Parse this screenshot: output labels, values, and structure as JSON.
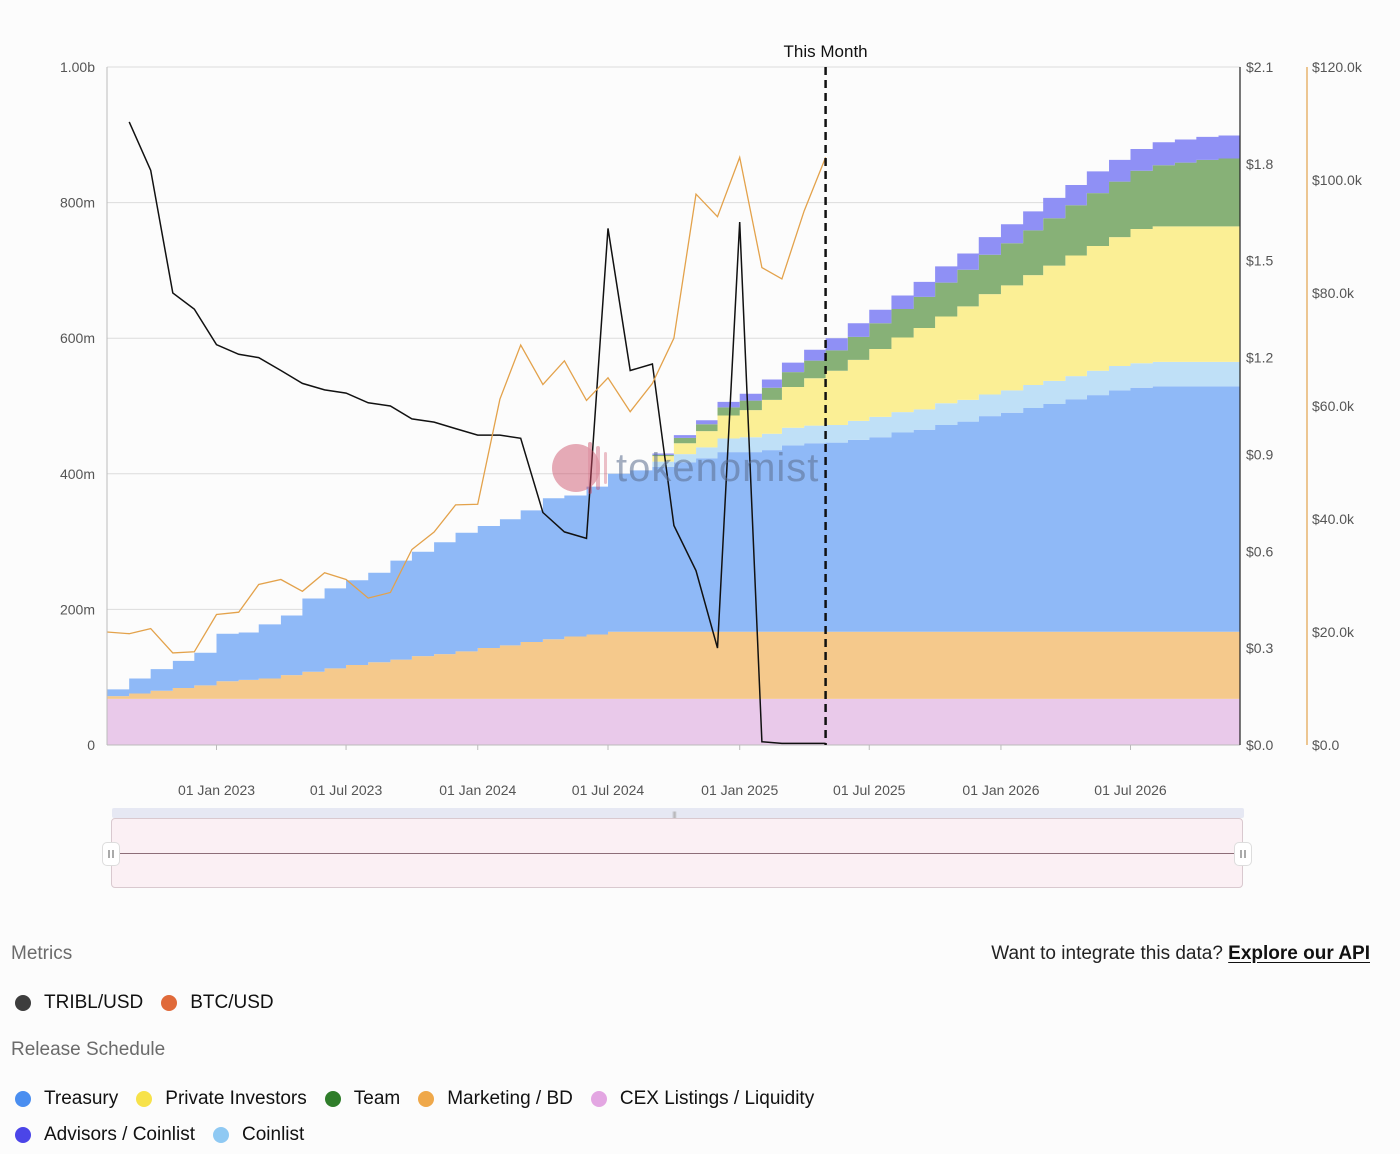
{
  "chart_data": {
    "type": "area",
    "stacked": true,
    "cursor_label": "This Month",
    "cursor_date": "2025-05-01",
    "x_range": [
      "2022-08-01",
      "2026-12-01"
    ],
    "x_ticks": [
      "01 Jan 2023",
      "01 Jul 2023",
      "01 Jan 2024",
      "01 Jul 2024",
      "01 Jan 2025",
      "01 Jul 2025",
      "01 Jan 2026",
      "01 Jul 2026"
    ],
    "x_tick_dates": [
      "2023-01-01",
      "2023-07-01",
      "2024-01-01",
      "2024-07-01",
      "2025-01-01",
      "2025-07-01",
      "2026-01-01",
      "2026-07-01"
    ],
    "y_left": {
      "ticks": [
        "1.00b",
        "800m",
        "600m",
        "400m",
        "200m",
        "0"
      ],
      "range": [
        0,
        1000000000
      ]
    },
    "y_right_price": {
      "ticks": [
        "$2.1",
        "$1.8",
        "$1.5",
        "$1.2",
        "$0.9",
        "$0.6",
        "$0.3",
        "$0.0"
      ],
      "range": [
        0,
        2.1
      ]
    },
    "y_right_btc": {
      "ticks": [
        "$120.0k",
        "$100.0k",
        "$80.0k",
        "$60.0k",
        "$40.0k",
        "$20.0k",
        "$0.0"
      ],
      "range": [
        0,
        120000
      ]
    },
    "grid": true,
    "months": [
      "2022-08",
      "2022-09",
      "2022-10",
      "2022-11",
      "2022-12",
      "2023-01",
      "2023-02",
      "2023-03",
      "2023-04",
      "2023-05",
      "2023-06",
      "2023-07",
      "2023-08",
      "2023-09",
      "2023-10",
      "2023-11",
      "2023-12",
      "2024-01",
      "2024-02",
      "2024-03",
      "2024-04",
      "2024-05",
      "2024-06",
      "2024-07",
      "2024-08",
      "2024-09",
      "2024-10",
      "2024-11",
      "2024-12",
      "2025-01",
      "2025-02",
      "2025-03",
      "2025-04",
      "2025-05",
      "2025-06",
      "2025-07",
      "2025-08",
      "2025-09",
      "2025-10",
      "2025-11",
      "2025-12",
      "2026-01",
      "2026-02",
      "2026-03",
      "2026-04",
      "2026-05",
      "2026-06",
      "2026-07",
      "2026-08",
      "2026-09",
      "2026-10",
      "2026-11"
    ],
    "series": [
      {
        "name": "CEX Listings / Liquidity",
        "color": "#e9c9ea",
        "values": [
          68,
          68,
          68,
          68,
          68,
          68,
          68,
          68,
          68,
          68,
          68,
          68,
          68,
          68,
          68,
          68,
          68,
          68,
          68,
          68,
          68,
          68,
          68,
          68,
          68,
          68,
          68,
          68,
          68,
          68,
          68,
          68,
          68,
          68,
          68,
          68,
          68,
          68,
          68,
          68,
          68,
          68,
          68,
          68,
          68,
          68,
          68,
          68,
          68,
          68,
          68,
          68
        ]
      },
      {
        "name": "Marketing / BD",
        "color": "#f5c98c",
        "values": [
          4,
          8,
          12,
          16,
          20,
          26,
          28,
          30,
          35,
          40,
          45,
          50,
          54,
          58,
          63,
          66,
          70,
          75,
          79,
          84,
          88,
          92,
          95,
          99,
          99,
          99,
          99,
          99,
          99,
          99,
          99,
          99,
          99,
          99,
          99,
          99,
          99,
          99,
          99,
          99,
          99,
          99,
          99,
          99,
          99,
          99,
          99,
          99,
          99,
          99,
          99,
          99
        ]
      },
      {
        "name": "Treasury",
        "color": "#8fb9f7",
        "values": [
          10,
          22,
          32,
          40,
          48,
          70,
          70,
          80,
          88,
          108,
          118,
          125,
          132,
          146,
          154,
          165,
          175,
          180,
          186,
          194,
          208,
          208,
          218,
          233,
          238,
          243,
          250,
          256,
          265,
          265,
          268,
          275,
          278,
          279,
          283,
          287,
          294,
          298,
          305,
          310,
          318,
          323,
          330,
          336,
          343,
          349,
          356,
          360,
          362,
          362,
          362,
          362
        ]
      },
      {
        "name": "Coinlist",
        "color": "#bfe0f7",
        "values": [
          0,
          0,
          0,
          0,
          0,
          0,
          0,
          0,
          0,
          0,
          0,
          0,
          0,
          0,
          0,
          0,
          0,
          0,
          0,
          0,
          0,
          0,
          0,
          0,
          0,
          8,
          12,
          16,
          20,
          22,
          24,
          26,
          26,
          26,
          28,
          30,
          30,
          30,
          32,
          32,
          32,
          33,
          34,
          34,
          34,
          36,
          36,
          36,
          36,
          36,
          36,
          36
        ]
      },
      {
        "name": "Private Investors",
        "color": "#fbef95",
        "values": [
          0,
          0,
          0,
          0,
          0,
          0,
          0,
          0,
          0,
          0,
          0,
          0,
          0,
          0,
          0,
          0,
          0,
          0,
          0,
          0,
          0,
          0,
          0,
          0,
          0,
          8,
          16,
          24,
          34,
          40,
          50,
          60,
          70,
          80,
          90,
          100,
          110,
          120,
          128,
          138,
          148,
          155,
          162,
          170,
          178,
          184,
          190,
          198,
          200,
          200,
          200,
          200
        ]
      },
      {
        "name": "Team",
        "color": "#87b177",
        "values": [
          0,
          0,
          0,
          0,
          0,
          0,
          0,
          0,
          0,
          0,
          0,
          0,
          0,
          0,
          0,
          0,
          0,
          0,
          0,
          0,
          0,
          0,
          0,
          0,
          0,
          2,
          8,
          10,
          12,
          14,
          18,
          22,
          26,
          30,
          34,
          38,
          42,
          46,
          50,
          54,
          58,
          62,
          66,
          70,
          74,
          78,
          82,
          86,
          90,
          94,
          98,
          100
        ]
      },
      {
        "name": "Advisors / Coinlist",
        "color": "#8f90f5",
        "values": [
          0,
          0,
          0,
          0,
          0,
          0,
          0,
          0,
          0,
          0,
          0,
          0,
          0,
          0,
          0,
          0,
          0,
          0,
          0,
          0,
          0,
          0,
          0,
          0,
          0,
          2,
          4,
          6,
          8,
          10,
          12,
          14,
          16,
          18,
          20,
          20,
          20,
          22,
          24,
          24,
          26,
          28,
          28,
          30,
          30,
          32,
          32,
          32,
          34,
          34,
          34,
          34
        ]
      }
    ],
    "unit_scale": "millions of tokens",
    "price_lines": [
      {
        "name": "TRIBL/USD",
        "axis": "price",
        "color": "#111111",
        "points": [
          [
            "2022-09-01",
            1.93
          ],
          [
            "2022-10-01",
            1.78
          ],
          [
            "2022-11-01",
            1.4
          ],
          [
            "2022-12-01",
            1.35
          ],
          [
            "2023-01-01",
            1.24
          ],
          [
            "2023-02-01",
            1.21
          ],
          [
            "2023-03-01",
            1.2
          ],
          [
            "2023-04-01",
            1.16
          ],
          [
            "2023-05-01",
            1.12
          ],
          [
            "2023-06-01",
            1.1
          ],
          [
            "2023-07-01",
            1.09
          ],
          [
            "2023-08-01",
            1.06
          ],
          [
            "2023-09-01",
            1.05
          ],
          [
            "2023-10-01",
            1.01
          ],
          [
            "2023-11-01",
            1.0
          ],
          [
            "2023-12-01",
            0.98
          ],
          [
            "2024-01-01",
            0.96
          ],
          [
            "2024-02-01",
            0.96
          ],
          [
            "2024-03-01",
            0.95
          ],
          [
            "2024-04-01",
            0.72
          ],
          [
            "2024-05-01",
            0.66
          ],
          [
            "2024-06-01",
            0.64
          ],
          [
            "2024-07-01",
            1.6
          ],
          [
            "2024-08-01",
            1.16
          ],
          [
            "2024-09-01",
            1.18
          ],
          [
            "2024-10-01",
            0.68
          ],
          [
            "2024-11-01",
            0.54
          ],
          [
            "2024-12-01",
            0.3
          ],
          [
            "2025-01-01",
            1.62
          ],
          [
            "2025-02-01",
            0.01
          ],
          [
            "2025-03-01",
            0.005
          ],
          [
            "2025-04-01",
            0.005
          ],
          [
            "2025-05-01",
            0.005
          ]
        ]
      },
      {
        "name": "BTC/USD",
        "axis": "btc",
        "color": "#e3a24b",
        "points": [
          [
            "2022-08-01",
            20000
          ],
          [
            "2022-09-01",
            19700
          ],
          [
            "2022-10-01",
            20600
          ],
          [
            "2022-11-01",
            16300
          ],
          [
            "2022-12-01",
            16500
          ],
          [
            "2023-01-01",
            23100
          ],
          [
            "2023-02-01",
            23500
          ],
          [
            "2023-03-01",
            28400
          ],
          [
            "2023-04-01",
            29300
          ],
          [
            "2023-05-01",
            27200
          ],
          [
            "2023-06-01",
            30500
          ],
          [
            "2023-07-01",
            29300
          ],
          [
            "2023-08-01",
            26000
          ],
          [
            "2023-09-01",
            27000
          ],
          [
            "2023-10-01",
            34600
          ],
          [
            "2023-11-01",
            37700
          ],
          [
            "2023-12-01",
            42500
          ],
          [
            "2024-01-01",
            42600
          ],
          [
            "2024-02-01",
            61200
          ],
          [
            "2024-03-01",
            70800
          ],
          [
            "2024-04-01",
            63800
          ],
          [
            "2024-05-01",
            68000
          ],
          [
            "2024-06-01",
            61000
          ],
          [
            "2024-07-01",
            65000
          ],
          [
            "2024-08-01",
            59000
          ],
          [
            "2024-09-01",
            64000
          ],
          [
            "2024-10-01",
            72000
          ],
          [
            "2024-11-01",
            97500
          ],
          [
            "2024-12-01",
            93500
          ],
          [
            "2025-01-01",
            104000
          ],
          [
            "2025-02-01",
            84500
          ],
          [
            "2025-03-01",
            82500
          ],
          [
            "2025-04-01",
            94500
          ],
          [
            "2025-05-01",
            104000
          ]
        ]
      }
    ]
  },
  "watermark": "tokenomist",
  "metrics": {
    "title": "Metrics",
    "items": [
      {
        "label": "TRIBL/USD",
        "color": "#3d3d3d"
      },
      {
        "label": "BTC/USD",
        "color": "#e06a3a"
      }
    ]
  },
  "api": {
    "prompt": "Want to integrate this data?",
    "link": "Explore our API"
  },
  "release": {
    "title": "Release Schedule",
    "row1": [
      {
        "label": "Treasury",
        "color": "#4a8ef0"
      },
      {
        "label": "Private Investors",
        "color": "#f7e24a"
      },
      {
        "label": "Team",
        "color": "#2f7d2a"
      },
      {
        "label": "Marketing / BD",
        "color": "#efa84a"
      },
      {
        "label": "CEX Listings / Liquidity",
        "color": "#e3a6e2"
      }
    ],
    "row2": [
      {
        "label": "Advisors / Coinlist",
        "color": "#4b45e8"
      },
      {
        "label": "Coinlist",
        "color": "#8fc9f3"
      }
    ]
  }
}
